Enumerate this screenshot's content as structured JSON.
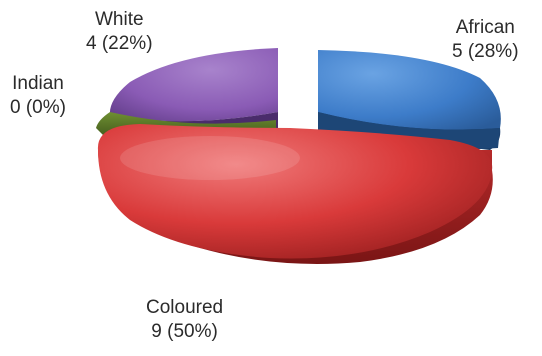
{
  "chart_data": {
    "type": "pie",
    "style": "3d-exploded",
    "slices": [
      {
        "category": "African",
        "value": 5,
        "value_label": "5 (28%)",
        "percent": 28,
        "color": "#3d7cc9"
      },
      {
        "category": "Coloured",
        "value": 9,
        "value_label": "9 (50%)",
        "percent": 50,
        "color": "#d93a3a"
      },
      {
        "category": "Indian",
        "value": 0,
        "value_label": "0 (0%)",
        "percent": 0,
        "color": "#5c7a2a"
      },
      {
        "category": "White",
        "value": 4,
        "value_label": "4 (22%)",
        "percent": 22,
        "color": "#8a5bb5"
      }
    ],
    "legend": "none"
  }
}
